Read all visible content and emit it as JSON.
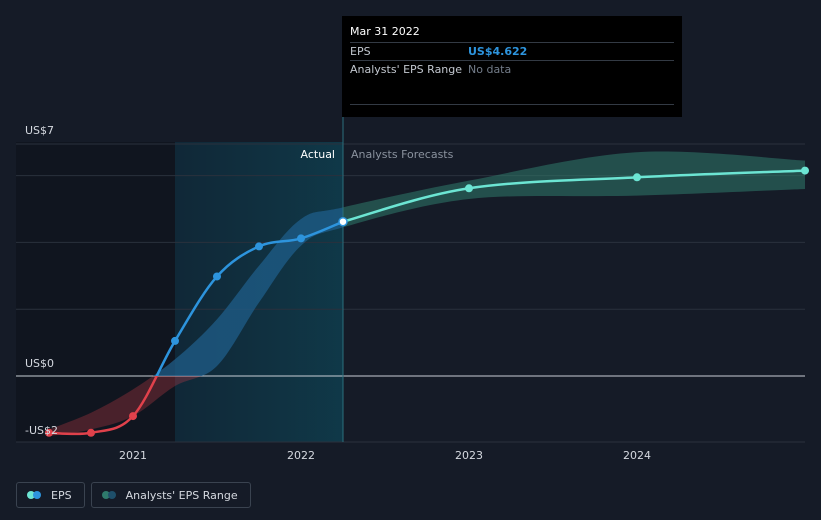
{
  "chart_data": {
    "type": "line",
    "title": "",
    "xlabel": "",
    "ylabel": "",
    "x_ticks": [
      "2021",
      "2022",
      "2023",
      "2024"
    ],
    "y_axis_labels": [
      "US$7",
      "US$0",
      "-US$2"
    ],
    "ylim": [
      -2,
      7
    ],
    "xlim": [
      2020.3,
      2025.0
    ],
    "region_labels": {
      "actual": "Actual",
      "forecast": "Analysts Forecasts"
    },
    "colors": {
      "eps_positive": "#2d94dd",
      "eps_negative": "#e0414b",
      "forecast_line": "#6ce5d3",
      "range_fill": "#2f7a6c"
    },
    "series": [
      {
        "name": "EPS",
        "type": "actual",
        "x": [
          2020.5,
          2020.75,
          2021.0,
          2021.25,
          2021.5,
          2021.75,
          2022.0,
          2022.25
        ],
        "values": [
          -1.7,
          -1.7,
          -1.2,
          1.05,
          2.98,
          3.88,
          4.12,
          4.62
        ]
      },
      {
        "name": "EPS",
        "type": "forecast",
        "x": [
          2022.25,
          2023.0,
          2024.0,
          2025.0
        ],
        "values": [
          4.62,
          5.62,
          5.95,
          6.15
        ]
      }
    ],
    "range": {
      "name": "Analysts' EPS Range",
      "x": [
        2020.5,
        2020.75,
        2021.0,
        2021.25,
        2021.5,
        2021.75,
        2022.0,
        2022.25,
        2023.0,
        2024.0,
        2025.0
      ],
      "low": [
        -1.8,
        -1.6,
        -1.2,
        -0.3,
        0.3,
        2.2,
        3.9,
        4.45,
        5.3,
        5.4,
        5.6
      ],
      "high": [
        -1.6,
        -1.1,
        -0.4,
        0.5,
        1.7,
        3.3,
        4.7,
        5.05,
        5.85,
        6.7,
        6.45
      ]
    }
  },
  "tooltip": {
    "date": "Mar 31 2022",
    "eps_label": "EPS",
    "eps_value": "US$4.622",
    "range_label": "Analysts' EPS Range",
    "range_value": "No data"
  },
  "legend": {
    "eps_label": "EPS",
    "range_label": "Analysts' EPS Range"
  }
}
